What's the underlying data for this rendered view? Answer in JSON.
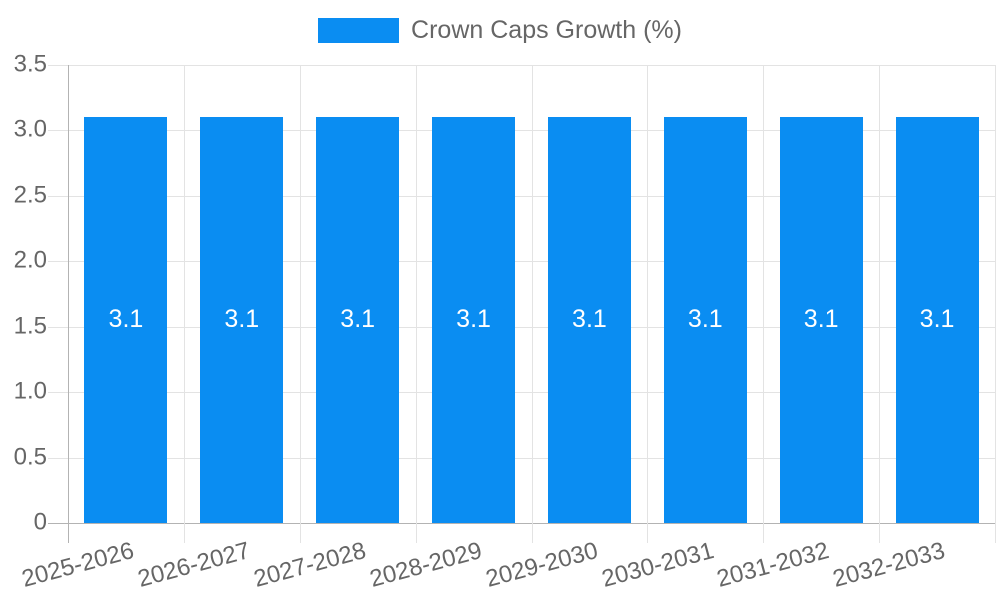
{
  "legend": {
    "label": "Crown Caps Growth (%)"
  },
  "chart_data": {
    "type": "bar",
    "title": "Crown Caps Growth (%)",
    "categories": [
      "2025-2026",
      "2026-2027",
      "2027-2028",
      "2028-2029",
      "2029-2030",
      "2030-2031",
      "2031-2032",
      "2032-2033"
    ],
    "values": [
      3.1,
      3.1,
      3.1,
      3.1,
      3.1,
      3.1,
      3.1,
      3.1
    ],
    "value_labels": [
      "3.1",
      "3.1",
      "3.1",
      "3.1",
      "3.1",
      "3.1",
      "3.1",
      "3.1"
    ],
    "xlabel": "",
    "ylabel": "",
    "ylim": [
      0,
      3.5
    ],
    "ytick_labels": [
      "0",
      "0.5",
      "1.0",
      "1.5",
      "2.0",
      "2.5",
      "3.0",
      "3.5"
    ],
    "ytick_values": [
      0,
      0.5,
      1.0,
      1.5,
      2.0,
      2.5,
      3.0,
      3.5
    ],
    "grid": "on",
    "legend_position": "top-center",
    "colors": {
      "bar": "#0a8df2",
      "grid_line": "#e3e3e3",
      "axis_line": "#b3b3b3",
      "tick_label": "#666666",
      "legend_label": "#666666",
      "value_label": "#ffffff",
      "background": "#ffffff"
    }
  }
}
